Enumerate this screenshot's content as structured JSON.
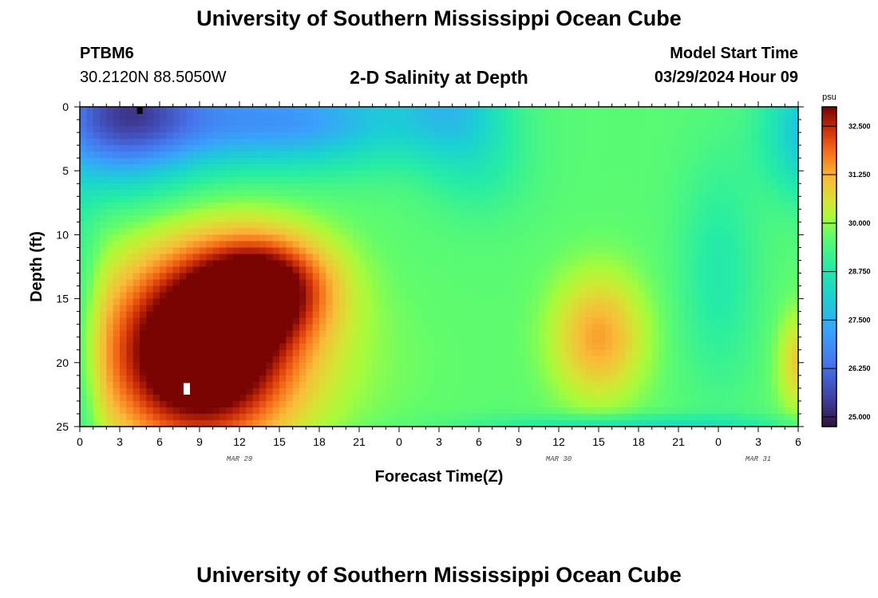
{
  "header": {
    "main_title": "University of Southern Mississippi Ocean Cube",
    "station_id": "PTBM6",
    "station_coords": "30.2120N  88.5050W",
    "chart_title": "2-D Salinity at Depth",
    "model_start_label": "Model Start Time",
    "model_start_value": "03/29/2024 Hour 09"
  },
  "footer": {
    "title": "University of Southern Mississippi Ocean Cube"
  },
  "chart_data": {
    "type": "heatmap",
    "title": "2-D Salinity at Depth",
    "xlabel": "Forecast Time(Z)",
    "ylabel": "Depth (ft)",
    "x_range_hours": [
      0,
      54
    ],
    "y_range_ft": [
      0,
      25
    ],
    "x_tick_labels": [
      "0",
      "3",
      "6",
      "9",
      "12",
      "15",
      "18",
      "21",
      "0",
      "3",
      "6",
      "9",
      "12",
      "15",
      "18",
      "21",
      "0",
      "3",
      "6"
    ],
    "y_tick_labels": [
      "0",
      "5",
      "10",
      "15",
      "20",
      "25"
    ],
    "date_labels": [
      {
        "label": "MAR 29",
        "hour": 12
      },
      {
        "label": "MAR 30",
        "hour": 36
      },
      {
        "label": "MAR 31",
        "hour": 51
      }
    ],
    "colorbar": {
      "unit": "psu",
      "min": 24.75,
      "max": 33.0,
      "tick_values": [
        25.0,
        26.25,
        27.5,
        28.75,
        30.0,
        31.25,
        32.5
      ],
      "tick_labels": [
        "25.000",
        "26.250",
        "27.500",
        "28.750",
        "30.000",
        "31.250",
        "32.500"
      ]
    },
    "salinity_features": [
      {
        "description": "low-salinity surface layer",
        "hour_range": [
          0,
          8
        ],
        "depth_range_ft": [
          0,
          8
        ],
        "salinity_psu": 25.0
      },
      {
        "description": "fresh surface lens (moderate)",
        "hour_range": [
          8,
          25
        ],
        "depth_range_ft": [
          0,
          6
        ],
        "salinity_psu": 27.0
      },
      {
        "description": "high-salinity bottom core",
        "hour_range": [
          1,
          20
        ],
        "depth_range_ft": [
          9,
          25
        ],
        "salinity_psu": 33.0
      },
      {
        "description": "secondary saline core",
        "hour_range": [
          36,
          43
        ],
        "depth_range_ft": [
          14,
          22
        ],
        "salinity_psu": 31.5
      },
      {
        "description": "mid-column background",
        "hour_range": [
          25,
          54
        ],
        "depth_range_ft": [
          0,
          25
        ],
        "salinity_psu": 29.8
      },
      {
        "description": "right-edge saline patch",
        "hour_range": [
          52,
          54
        ],
        "depth_range_ft": [
          15,
          24
        ],
        "salinity_psu": 30.8
      }
    ]
  }
}
